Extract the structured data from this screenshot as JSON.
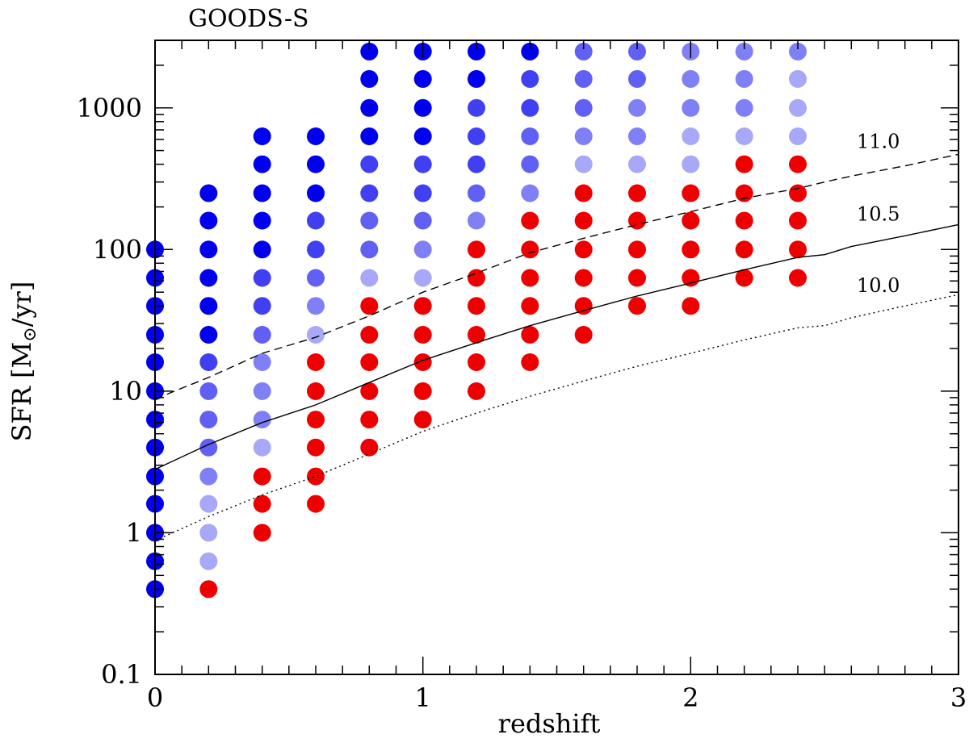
{
  "chart_data": {
    "type": "scatter",
    "title": "GOODS-S",
    "xlabel": "redshift",
    "ylabel_main": "SFR [M",
    "ylabel_sub": "⊙",
    "ylabel_tail": "/yr]",
    "xlim": [
      0,
      3
    ],
    "ylim": [
      0.1,
      3000
    ],
    "yscale": "log",
    "grid": false,
    "legend": "none",
    "xticks": [
      {
        "v": 0,
        "label": "0"
      },
      {
        "v": 1,
        "label": "1"
      },
      {
        "v": 2,
        "label": "2"
      },
      {
        "v": 3,
        "label": "3"
      }
    ],
    "yticks": [
      {
        "v": 0.1,
        "label": "0.1"
      },
      {
        "v": 1,
        "label": "1"
      },
      {
        "v": 10,
        "label": "10"
      },
      {
        "v": 100,
        "label": "100"
      },
      {
        "v": 1000,
        "label": "1000"
      }
    ],
    "colors": {
      "blue_1": "#0000ee",
      "blue_2": "#4040f2",
      "blue_3": "#6060f4",
      "blue_4": "#8080f6",
      "blue_5": "#a8a8f8",
      "red": "#ee0000"
    },
    "points": [
      {
        "z": 0.0,
        "sfr": 100,
        "c": "blue_1"
      },
      {
        "z": 0.0,
        "sfr": 63,
        "c": "blue_1"
      },
      {
        "z": 0.0,
        "sfr": 40,
        "c": "blue_1"
      },
      {
        "z": 0.0,
        "sfr": 25,
        "c": "blue_1"
      },
      {
        "z": 0.0,
        "sfr": 16,
        "c": "blue_1"
      },
      {
        "z": 0.0,
        "sfr": 10,
        "c": "blue_1"
      },
      {
        "z": 0.0,
        "sfr": 6.3,
        "c": "blue_1"
      },
      {
        "z": 0.0,
        "sfr": 4,
        "c": "blue_1"
      },
      {
        "z": 0.0,
        "sfr": 2.5,
        "c": "blue_1"
      },
      {
        "z": 0.0,
        "sfr": 1.6,
        "c": "blue_1"
      },
      {
        "z": 0.0,
        "sfr": 1.0,
        "c": "blue_1"
      },
      {
        "z": 0.0,
        "sfr": 0.63,
        "c": "blue_1"
      },
      {
        "z": 0.0,
        "sfr": 0.4,
        "c": "blue_1"
      },
      {
        "z": 0.2,
        "sfr": 250,
        "c": "blue_1"
      },
      {
        "z": 0.2,
        "sfr": 160,
        "c": "blue_1"
      },
      {
        "z": 0.2,
        "sfr": 100,
        "c": "blue_1"
      },
      {
        "z": 0.2,
        "sfr": 63,
        "c": "blue_1"
      },
      {
        "z": 0.2,
        "sfr": 40,
        "c": "blue_1"
      },
      {
        "z": 0.2,
        "sfr": 25,
        "c": "blue_1"
      },
      {
        "z": 0.2,
        "sfr": 16,
        "c": "blue_2"
      },
      {
        "z": 0.2,
        "sfr": 10,
        "c": "blue_3"
      },
      {
        "z": 0.2,
        "sfr": 6.3,
        "c": "blue_3"
      },
      {
        "z": 0.2,
        "sfr": 4,
        "c": "blue_3"
      },
      {
        "z": 0.2,
        "sfr": 2.5,
        "c": "blue_4"
      },
      {
        "z": 0.2,
        "sfr": 1.6,
        "c": "blue_5"
      },
      {
        "z": 0.2,
        "sfr": 1.0,
        "c": "blue_5"
      },
      {
        "z": 0.2,
        "sfr": 0.63,
        "c": "blue_5"
      },
      {
        "z": 0.2,
        "sfr": 0.4,
        "c": "red"
      },
      {
        "z": 0.4,
        "sfr": 630,
        "c": "blue_1"
      },
      {
        "z": 0.4,
        "sfr": 400,
        "c": "blue_1"
      },
      {
        "z": 0.4,
        "sfr": 250,
        "c": "blue_1"
      },
      {
        "z": 0.4,
        "sfr": 160,
        "c": "blue_1"
      },
      {
        "z": 0.4,
        "sfr": 100,
        "c": "blue_1"
      },
      {
        "z": 0.4,
        "sfr": 63,
        "c": "blue_2"
      },
      {
        "z": 0.4,
        "sfr": 40,
        "c": "blue_2"
      },
      {
        "z": 0.4,
        "sfr": 25,
        "c": "blue_3"
      },
      {
        "z": 0.4,
        "sfr": 16,
        "c": "blue_4"
      },
      {
        "z": 0.4,
        "sfr": 10,
        "c": "blue_4"
      },
      {
        "z": 0.4,
        "sfr": 6.3,
        "c": "blue_4"
      },
      {
        "z": 0.4,
        "sfr": 4,
        "c": "blue_5"
      },
      {
        "z": 0.4,
        "sfr": 2.5,
        "c": "red"
      },
      {
        "z": 0.4,
        "sfr": 1.6,
        "c": "red"
      },
      {
        "z": 0.4,
        "sfr": 1.0,
        "c": "red"
      },
      {
        "z": 0.6,
        "sfr": 630,
        "c": "blue_1"
      },
      {
        "z": 0.6,
        "sfr": 400,
        "c": "blue_1"
      },
      {
        "z": 0.6,
        "sfr": 250,
        "c": "blue_1"
      },
      {
        "z": 0.6,
        "sfr": 160,
        "c": "blue_2"
      },
      {
        "z": 0.6,
        "sfr": 100,
        "c": "blue_2"
      },
      {
        "z": 0.6,
        "sfr": 63,
        "c": "blue_3"
      },
      {
        "z": 0.6,
        "sfr": 40,
        "c": "blue_4"
      },
      {
        "z": 0.6,
        "sfr": 25,
        "c": "blue_5"
      },
      {
        "z": 0.6,
        "sfr": 16,
        "c": "red"
      },
      {
        "z": 0.6,
        "sfr": 10,
        "c": "red"
      },
      {
        "z": 0.6,
        "sfr": 6.3,
        "c": "red"
      },
      {
        "z": 0.6,
        "sfr": 4,
        "c": "red"
      },
      {
        "z": 0.6,
        "sfr": 2.5,
        "c": "red"
      },
      {
        "z": 0.6,
        "sfr": 1.6,
        "c": "red"
      },
      {
        "z": 0.8,
        "sfr": 2500,
        "c": "blue_1"
      },
      {
        "z": 0.8,
        "sfr": 1600,
        "c": "blue_1"
      },
      {
        "z": 0.8,
        "sfr": 1000,
        "c": "blue_1"
      },
      {
        "z": 0.8,
        "sfr": 630,
        "c": "blue_1"
      },
      {
        "z": 0.8,
        "sfr": 400,
        "c": "blue_2"
      },
      {
        "z": 0.8,
        "sfr": 250,
        "c": "blue_2"
      },
      {
        "z": 0.8,
        "sfr": 160,
        "c": "blue_3"
      },
      {
        "z": 0.8,
        "sfr": 100,
        "c": "blue_3"
      },
      {
        "z": 0.8,
        "sfr": 63,
        "c": "blue_5"
      },
      {
        "z": 0.8,
        "sfr": 40,
        "c": "red"
      },
      {
        "z": 0.8,
        "sfr": 25,
        "c": "red"
      },
      {
        "z": 0.8,
        "sfr": 16,
        "c": "red"
      },
      {
        "z": 0.8,
        "sfr": 10,
        "c": "red"
      },
      {
        "z": 0.8,
        "sfr": 6.3,
        "c": "red"
      },
      {
        "z": 0.8,
        "sfr": 4,
        "c": "red"
      },
      {
        "z": 1.0,
        "sfr": 2500,
        "c": "blue_1"
      },
      {
        "z": 1.0,
        "sfr": 1600,
        "c": "blue_1"
      },
      {
        "z": 1.0,
        "sfr": 1000,
        "c": "blue_1"
      },
      {
        "z": 1.0,
        "sfr": 630,
        "c": "blue_1"
      },
      {
        "z": 1.0,
        "sfr": 400,
        "c": "blue_2"
      },
      {
        "z": 1.0,
        "sfr": 250,
        "c": "blue_2"
      },
      {
        "z": 1.0,
        "sfr": 160,
        "c": "blue_3"
      },
      {
        "z": 1.0,
        "sfr": 100,
        "c": "blue_4"
      },
      {
        "z": 1.0,
        "sfr": 63,
        "c": "blue_5"
      },
      {
        "z": 1.0,
        "sfr": 40,
        "c": "red"
      },
      {
        "z": 1.0,
        "sfr": 25,
        "c": "red"
      },
      {
        "z": 1.0,
        "sfr": 16,
        "c": "red"
      },
      {
        "z": 1.0,
        "sfr": 10,
        "c": "red"
      },
      {
        "z": 1.0,
        "sfr": 6.3,
        "c": "red"
      },
      {
        "z": 1.2,
        "sfr": 2500,
        "c": "blue_1"
      },
      {
        "z": 1.2,
        "sfr": 1600,
        "c": "blue_1"
      },
      {
        "z": 1.2,
        "sfr": 1000,
        "c": "blue_2"
      },
      {
        "z": 1.2,
        "sfr": 630,
        "c": "blue_2"
      },
      {
        "z": 1.2,
        "sfr": 400,
        "c": "blue_2"
      },
      {
        "z": 1.2,
        "sfr": 250,
        "c": "blue_3"
      },
      {
        "z": 1.2,
        "sfr": 160,
        "c": "blue_4"
      },
      {
        "z": 1.2,
        "sfr": 100,
        "c": "red"
      },
      {
        "z": 1.2,
        "sfr": 63,
        "c": "red"
      },
      {
        "z": 1.2,
        "sfr": 40,
        "c": "red"
      },
      {
        "z": 1.2,
        "sfr": 25,
        "c": "red"
      },
      {
        "z": 1.2,
        "sfr": 16,
        "c": "red"
      },
      {
        "z": 1.2,
        "sfr": 10,
        "c": "red"
      },
      {
        "z": 1.4,
        "sfr": 2500,
        "c": "blue_1"
      },
      {
        "z": 1.4,
        "sfr": 1600,
        "c": "blue_2"
      },
      {
        "z": 1.4,
        "sfr": 1000,
        "c": "blue_2"
      },
      {
        "z": 1.4,
        "sfr": 630,
        "c": "blue_3"
      },
      {
        "z": 1.4,
        "sfr": 400,
        "c": "blue_3"
      },
      {
        "z": 1.4,
        "sfr": 250,
        "c": "blue_4"
      },
      {
        "z": 1.4,
        "sfr": 160,
        "c": "red"
      },
      {
        "z": 1.4,
        "sfr": 100,
        "c": "red"
      },
      {
        "z": 1.4,
        "sfr": 63,
        "c": "red"
      },
      {
        "z": 1.4,
        "sfr": 40,
        "c": "red"
      },
      {
        "z": 1.4,
        "sfr": 25,
        "c": "red"
      },
      {
        "z": 1.4,
        "sfr": 16,
        "c": "red"
      },
      {
        "z": 1.6,
        "sfr": 2500,
        "c": "blue_3"
      },
      {
        "z": 1.6,
        "sfr": 1600,
        "c": "blue_3"
      },
      {
        "z": 1.6,
        "sfr": 1000,
        "c": "blue_3"
      },
      {
        "z": 1.6,
        "sfr": 630,
        "c": "blue_4"
      },
      {
        "z": 1.6,
        "sfr": 400,
        "c": "blue_5"
      },
      {
        "z": 1.6,
        "sfr": 250,
        "c": "red"
      },
      {
        "z": 1.6,
        "sfr": 160,
        "c": "red"
      },
      {
        "z": 1.6,
        "sfr": 100,
        "c": "red"
      },
      {
        "z": 1.6,
        "sfr": 63,
        "c": "red"
      },
      {
        "z": 1.6,
        "sfr": 40,
        "c": "red"
      },
      {
        "z": 1.6,
        "sfr": 25,
        "c": "red"
      },
      {
        "z": 1.8,
        "sfr": 2500,
        "c": "blue_3"
      },
      {
        "z": 1.8,
        "sfr": 1600,
        "c": "blue_3"
      },
      {
        "z": 1.8,
        "sfr": 1000,
        "c": "blue_4"
      },
      {
        "z": 1.8,
        "sfr": 630,
        "c": "blue_4"
      },
      {
        "z": 1.8,
        "sfr": 400,
        "c": "blue_5"
      },
      {
        "z": 1.8,
        "sfr": 250,
        "c": "red"
      },
      {
        "z": 1.8,
        "sfr": 160,
        "c": "red"
      },
      {
        "z": 1.8,
        "sfr": 100,
        "c": "red"
      },
      {
        "z": 1.8,
        "sfr": 63,
        "c": "red"
      },
      {
        "z": 1.8,
        "sfr": 40,
        "c": "red"
      },
      {
        "z": 2.0,
        "sfr": 2500,
        "c": "blue_4"
      },
      {
        "z": 2.0,
        "sfr": 1600,
        "c": "blue_4"
      },
      {
        "z": 2.0,
        "sfr": 1000,
        "c": "blue_4"
      },
      {
        "z": 2.0,
        "sfr": 630,
        "c": "blue_5"
      },
      {
        "z": 2.0,
        "sfr": 400,
        "c": "blue_5"
      },
      {
        "z": 2.0,
        "sfr": 250,
        "c": "red"
      },
      {
        "z": 2.0,
        "sfr": 160,
        "c": "red"
      },
      {
        "z": 2.0,
        "sfr": 100,
        "c": "red"
      },
      {
        "z": 2.0,
        "sfr": 63,
        "c": "red"
      },
      {
        "z": 2.0,
        "sfr": 40,
        "c": "red"
      },
      {
        "z": 2.2,
        "sfr": 2500,
        "c": "blue_4"
      },
      {
        "z": 2.2,
        "sfr": 1600,
        "c": "blue_4"
      },
      {
        "z": 2.2,
        "sfr": 1000,
        "c": "blue_4"
      },
      {
        "z": 2.2,
        "sfr": 630,
        "c": "blue_5"
      },
      {
        "z": 2.2,
        "sfr": 400,
        "c": "red"
      },
      {
        "z": 2.2,
        "sfr": 250,
        "c": "red"
      },
      {
        "z": 2.2,
        "sfr": 160,
        "c": "red"
      },
      {
        "z": 2.2,
        "sfr": 100,
        "c": "red"
      },
      {
        "z": 2.2,
        "sfr": 63,
        "c": "red"
      },
      {
        "z": 2.4,
        "sfr": 2500,
        "c": "blue_4"
      },
      {
        "z": 2.4,
        "sfr": 1600,
        "c": "blue_5"
      },
      {
        "z": 2.4,
        "sfr": 1000,
        "c": "blue_5"
      },
      {
        "z": 2.4,
        "sfr": 630,
        "c": "blue_5"
      },
      {
        "z": 2.4,
        "sfr": 400,
        "c": "red"
      },
      {
        "z": 2.4,
        "sfr": 250,
        "c": "red"
      },
      {
        "z": 2.4,
        "sfr": 160,
        "c": "red"
      },
      {
        "z": 2.4,
        "sfr": 100,
        "c": "red"
      },
      {
        "z": 2.4,
        "sfr": 63,
        "c": "red"
      }
    ],
    "lines": [
      {
        "label": "11.0",
        "style": "dashed",
        "label_at": {
          "z": 2.62,
          "sfr": 520
        },
        "points": [
          [
            0,
            8.8
          ],
          [
            0.2,
            12.5
          ],
          [
            0.4,
            18.5
          ],
          [
            0.6,
            24
          ],
          [
            0.8,
            34
          ],
          [
            1.0,
            50
          ],
          [
            1.2,
            68
          ],
          [
            1.4,
            95
          ],
          [
            1.6,
            120
          ],
          [
            1.8,
            150
          ],
          [
            2.0,
            185
          ],
          [
            2.2,
            230
          ],
          [
            2.4,
            270
          ],
          [
            2.5,
            300
          ],
          [
            2.6,
            330
          ],
          [
            2.8,
            390
          ],
          [
            3.0,
            470
          ]
        ]
      },
      {
        "label": "10.5",
        "style": "solid",
        "label_at": {
          "z": 2.62,
          "sfr": 160
        },
        "points": [
          [
            0,
            2.8
          ],
          [
            0.2,
            4.2
          ],
          [
            0.4,
            6.0
          ],
          [
            0.6,
            8.0
          ],
          [
            0.8,
            11.5
          ],
          [
            1.0,
            16.5
          ],
          [
            1.2,
            22
          ],
          [
            1.4,
            29
          ],
          [
            1.6,
            37
          ],
          [
            1.8,
            47
          ],
          [
            2.0,
            58
          ],
          [
            2.2,
            72
          ],
          [
            2.4,
            88
          ],
          [
            2.5,
            92
          ],
          [
            2.6,
            105
          ],
          [
            2.8,
            125
          ],
          [
            3.0,
            150
          ]
        ]
      },
      {
        "label": "10.0",
        "style": "dotted",
        "label_at": {
          "z": 2.62,
          "sfr": 50
        },
        "points": [
          [
            0,
            0.88
          ],
          [
            0.2,
            1.3
          ],
          [
            0.4,
            1.85
          ],
          [
            0.6,
            2.5
          ],
          [
            0.8,
            3.6
          ],
          [
            1.0,
            5.2
          ],
          [
            1.2,
            7.0
          ],
          [
            1.4,
            9.2
          ],
          [
            1.6,
            11.8
          ],
          [
            1.8,
            15
          ],
          [
            2.0,
            18.5
          ],
          [
            2.2,
            23
          ],
          [
            2.4,
            28
          ],
          [
            2.5,
            29
          ],
          [
            2.6,
            33
          ],
          [
            2.8,
            40
          ],
          [
            3.0,
            48
          ]
        ]
      }
    ]
  }
}
